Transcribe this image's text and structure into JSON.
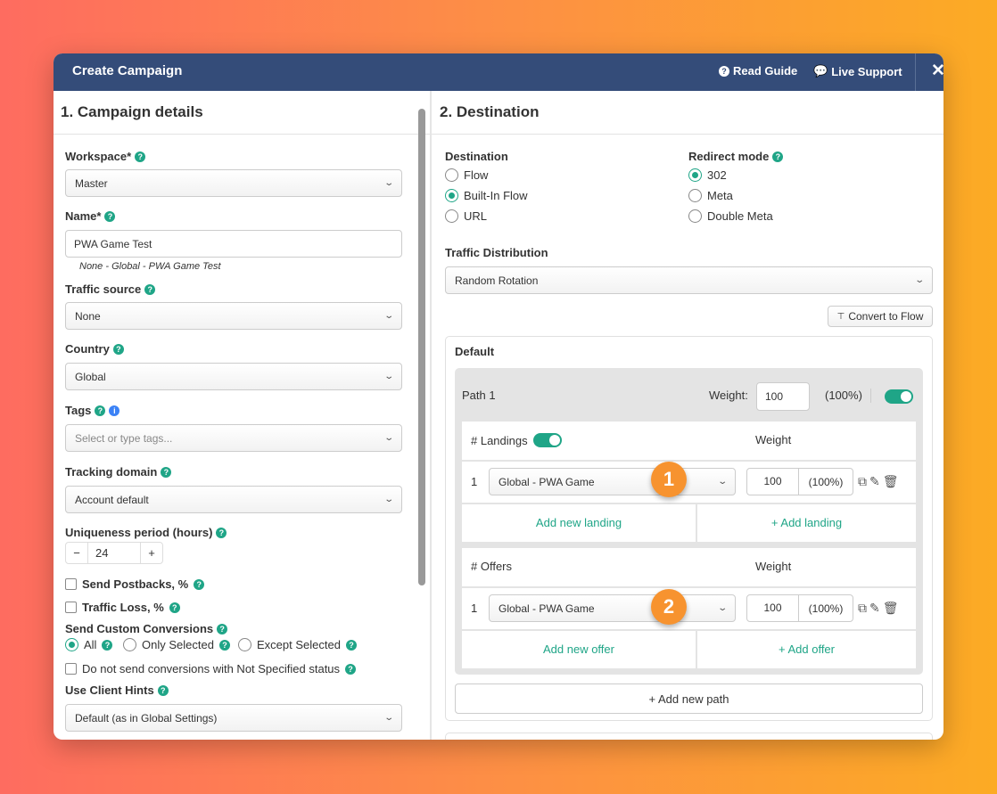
{
  "header": {
    "title": "Create Campaign",
    "read_guide": "Read Guide",
    "live_support": "Live Support",
    "close": "✕"
  },
  "left": {
    "title": "1. Campaign details",
    "workspace": {
      "label": "Workspace*",
      "value": "Master"
    },
    "name": {
      "label": "Name*",
      "value": "PWA Game Test",
      "hint": "None - Global - PWA Game Test"
    },
    "traffic_source": {
      "label": "Traffic source",
      "value": "None"
    },
    "country": {
      "label": "Country",
      "value": "Global"
    },
    "tags": {
      "label": "Tags",
      "placeholder": "Select or type tags..."
    },
    "tracking_domain": {
      "label": "Tracking domain",
      "value": "Account default"
    },
    "uniqueness": {
      "label": "Uniqueness period (hours)",
      "value": "24",
      "minus": "−",
      "plus": "+"
    },
    "send_postbacks": {
      "label": "Send Postbacks, %",
      "checked": false
    },
    "traffic_loss": {
      "label": "Traffic Loss, %",
      "checked": false
    },
    "custom_conversions": {
      "label": "Send Custom Conversions",
      "options": [
        "All",
        "Only Selected",
        "Except Selected"
      ],
      "selected": "All"
    },
    "not_specified": {
      "label": "Do not send conversions with Not Specified status",
      "checked": false
    },
    "client_hints": {
      "label": "Use Client Hints",
      "value": "Default (as in Global Settings)"
    }
  },
  "right": {
    "title": "2. Destination",
    "destination": {
      "label": "Destination",
      "options": [
        "Flow",
        "Built-In Flow",
        "URL"
      ],
      "selected": "Built-In Flow"
    },
    "redirect": {
      "label": "Redirect mode",
      "options": [
        "302",
        "Meta",
        "Double Meta"
      ],
      "selected": "302"
    },
    "traffic_distribution": {
      "label": "Traffic Distribution",
      "value": "Random Rotation"
    },
    "convert_to_flow": "Convert to Flow",
    "default_label": "Default",
    "path": {
      "name": "Path 1",
      "weight_label": "Weight:",
      "weight": "100",
      "percent": "(100%)",
      "enabled": true
    },
    "landings": {
      "header": "# Landings",
      "weight_header": "Weight",
      "enabled": true,
      "rows": [
        {
          "index": "1",
          "name": "Global - PWA Game",
          "weight": "100",
          "percent": "(100%)"
        }
      ],
      "add_new": "Add new landing",
      "add": "+ Add landing",
      "badge": "1"
    },
    "offers": {
      "header": "# Offers",
      "weight_header": "Weight",
      "rows": [
        {
          "index": "1",
          "name": "Global - PWA Game",
          "weight": "100",
          "percent": "(100%)"
        }
      ],
      "add_new": "Add new offer",
      "add": "+ Add offer",
      "badge": "2"
    },
    "add_path": "+ Add new path"
  },
  "colors": {
    "header": "#344c79",
    "accent": "#1fa587",
    "badge": "#f7932f"
  }
}
